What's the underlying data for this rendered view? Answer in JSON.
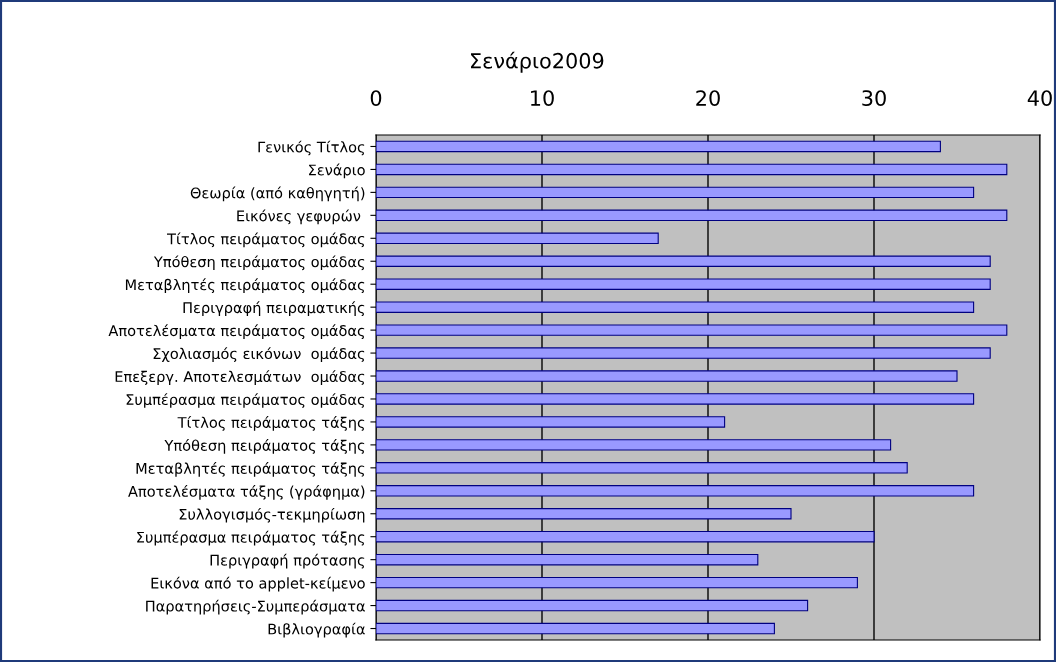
{
  "chart_data": {
    "type": "bar",
    "orientation": "horizontal",
    "title": "Σενάριο2009",
    "categories": [
      "Γενικός Τίτλος",
      "Σενάριο",
      "Θεωρία (από καθηγητή)",
      "Εικόνες γεφυρών ",
      "Τίτλος πειράματος ομάδας",
      "Υπόθεση πειράματος ομάδας",
      "Μεταβλητές πειράματος ομάδας",
      "Περιγραφή πειραματικής",
      "Αποτελέσματα πειράματος ομάδας",
      "Σχολιασμός εικόνων  ομάδας",
      "Επεξεργ. Αποτελεσμάτων  ομάδας",
      "Συμπέρασμα πειράματος ομάδας",
      "Τίτλος πειράματος τάξης",
      "Υπόθεση πειράματος τάξης",
      "Μεταβλητές πειράματος τάξης",
      "Αποτελέσματα τάξης (γράφημα)",
      "Συλλογισμός-τεκμηρίωση",
      "Συμπέρασμα πειράματος τάξης",
      "Περιγραφή πρότασης",
      "Εικόνα από το applet-κείμενο",
      "Παρατηρήσεις-Συμπεράσματα",
      "Βιβλιογραφία"
    ],
    "values": [
      34,
      38,
      36,
      38,
      17,
      37,
      37,
      36,
      38,
      37,
      35,
      36,
      21,
      31,
      32,
      36,
      25,
      30,
      23,
      29,
      26,
      24
    ],
    "color": "#9999ff",
    "xlim": [
      0,
      40
    ],
    "xticks": [
      0,
      10,
      20,
      30,
      40
    ],
    "grid": "x",
    "legend": false
  }
}
